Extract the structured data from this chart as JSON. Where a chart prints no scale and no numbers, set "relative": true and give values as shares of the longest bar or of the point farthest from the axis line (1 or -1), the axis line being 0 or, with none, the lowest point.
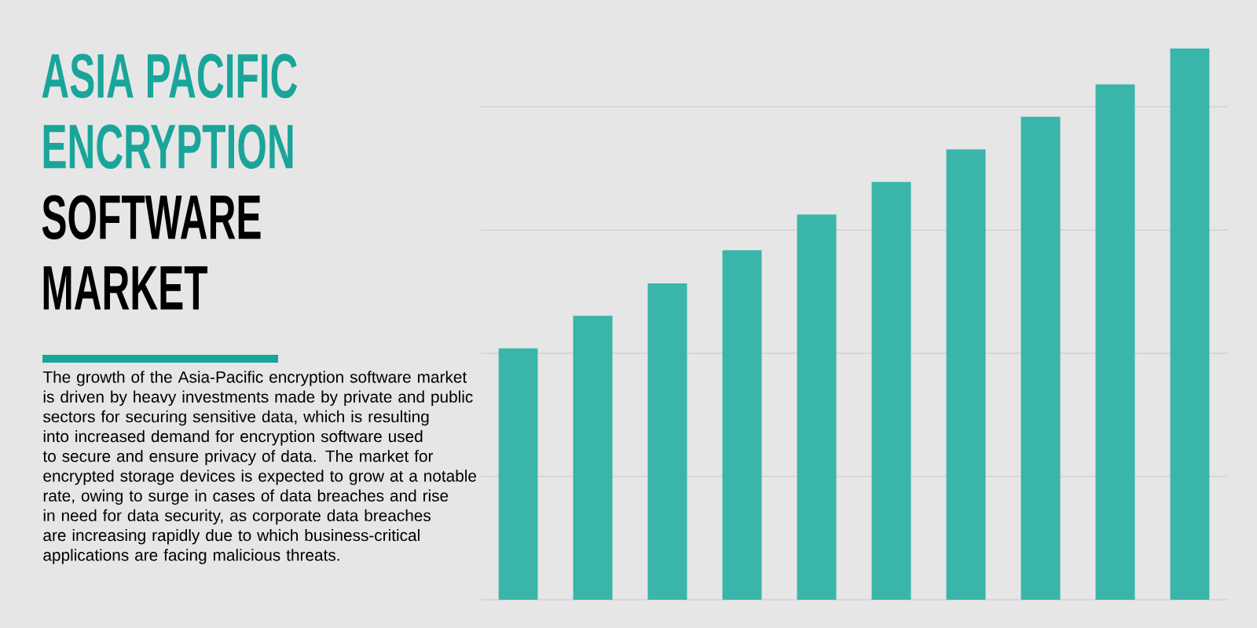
{
  "chart_data": {
    "type": "bar",
    "title": "ASIA PACIFIC ENCRYPTION",
    "subtitle": "SOFTWARE MARKET",
    "annotations": [
      "The growth of the Asia-Pacific encryption software market is driven by heavy investments made by private and public sectors for securing sensitive data, which is resulting into increased demand for encryption software used to secure and ensure privacy of data. The market for encrypted storage devices is expected to grow at a notable rate, owing to surge in cases of data breaches and rise in need for data security, as corporate data breaches are increasing rapidly due to which business-critical applications are facing malicious threats."
    ],
    "categories": [
      null,
      null,
      null,
      null,
      null,
      null,
      null,
      null,
      null,
      null
    ],
    "values": [
      0.456,
      0.515,
      0.574,
      0.634,
      0.699,
      0.758,
      0.817,
      0.876,
      0.935,
      1.0
    ],
    "color": "#3ab5aa",
    "relative": true,
    "grid": "y"
  }
}
